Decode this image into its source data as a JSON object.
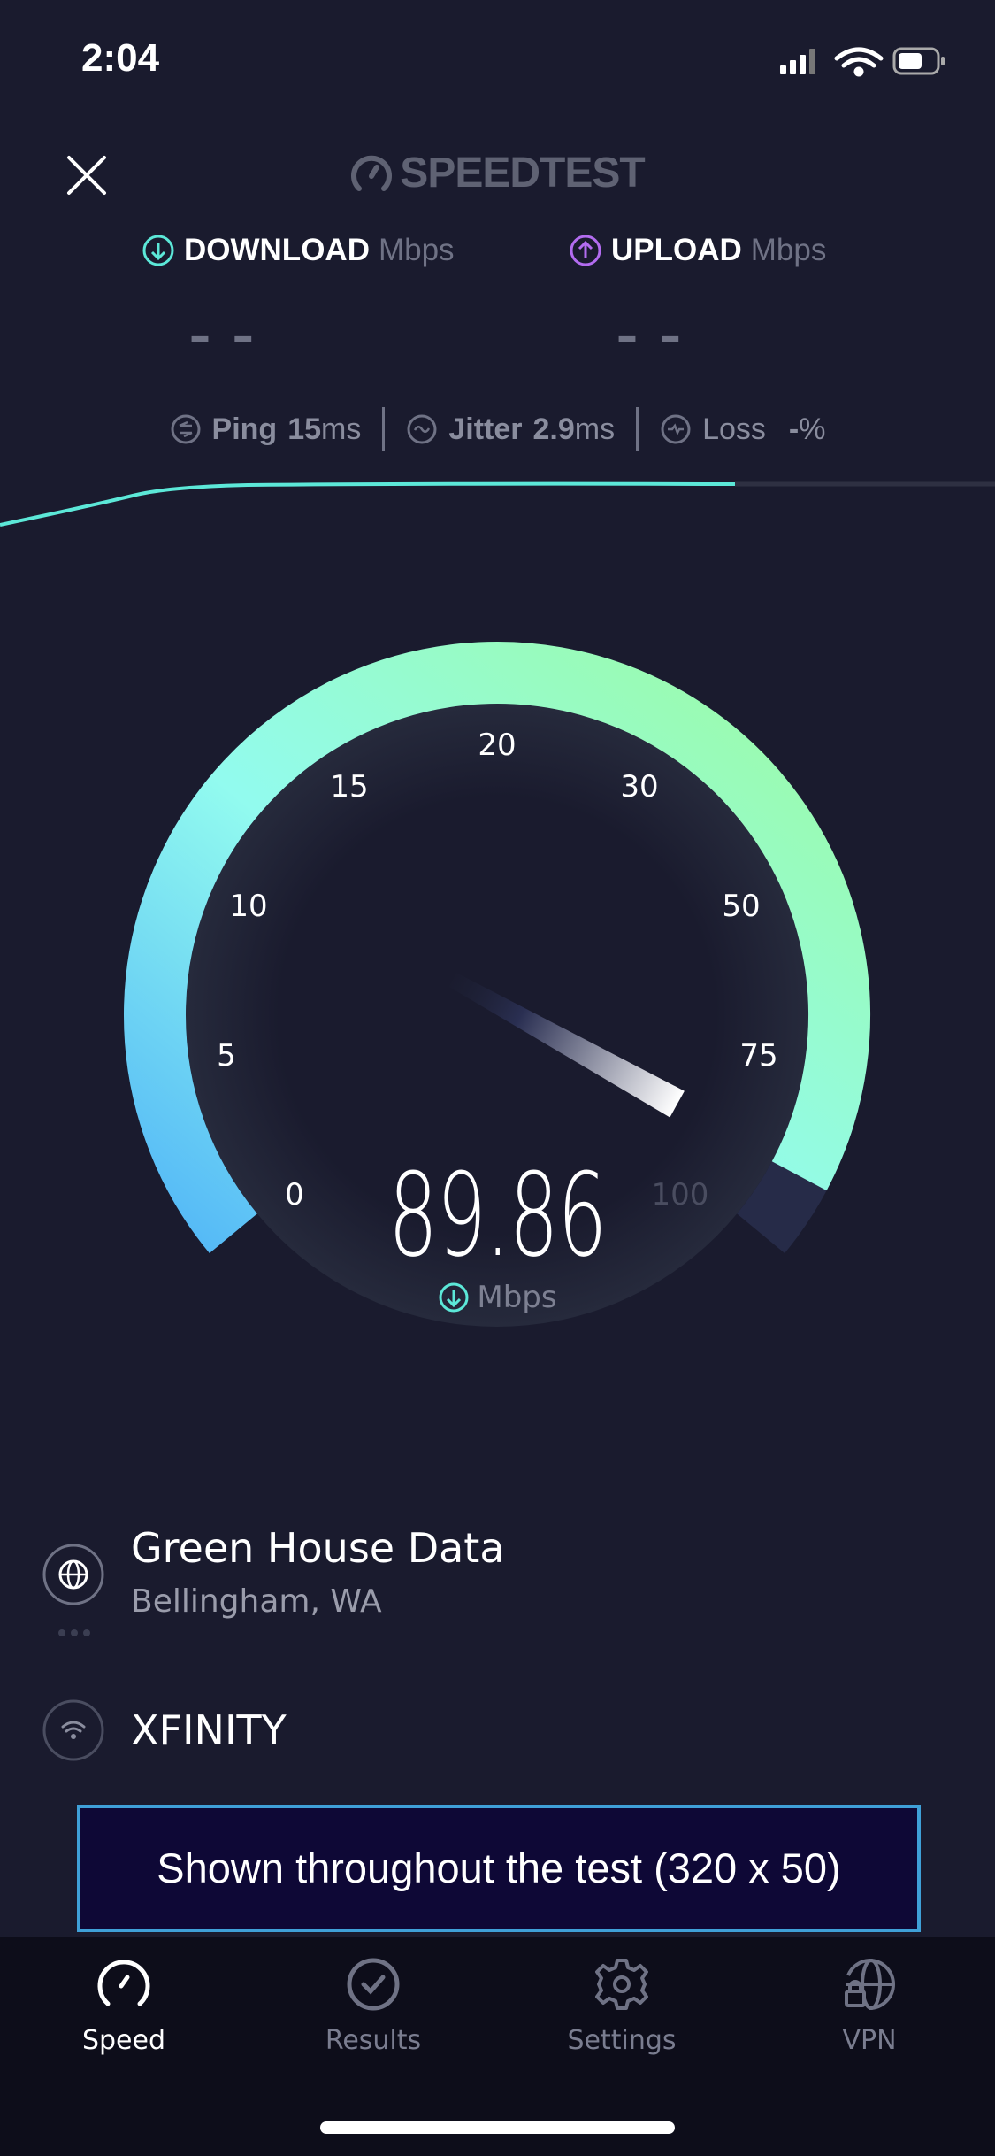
{
  "status_bar": {
    "time": "2:04",
    "icons": [
      "cellular-signal-icon",
      "wifi-icon",
      "battery-icon"
    ]
  },
  "header": {
    "close_icon": "close-icon",
    "logo_text": "SPEEDTEST"
  },
  "metrics": {
    "download": {
      "label": "DOWNLOAD",
      "unit": "Mbps",
      "value": "– –",
      "icon": "download-arrow-icon",
      "color": "#5ce8d8"
    },
    "upload": {
      "label": "UPLOAD",
      "unit": "Mbps",
      "value": "– –",
      "icon": "upload-arrow-icon",
      "color": "#b36cf0"
    }
  },
  "stats": {
    "ping": {
      "label": "Ping",
      "value": "15",
      "unit": "ms"
    },
    "jitter": {
      "label": "Jitter",
      "value": "2.9",
      "unit": "ms"
    },
    "loss": {
      "label": "Loss",
      "value": "-",
      "unit": "%"
    }
  },
  "progress": {
    "fraction": 0.74,
    "color": "#5ce8d8"
  },
  "gauge": {
    "ticks": [
      "0",
      "5",
      "10",
      "15",
      "20",
      "30",
      "50",
      "75",
      "100"
    ],
    "current_value": "89.86",
    "unit": "Mbps",
    "max": "100",
    "colors": {
      "start": "#52b6f7",
      "mid": "#92fbef",
      "end": "#9cfba2"
    }
  },
  "server": {
    "name": "Green House Data",
    "location": "Bellingham, WA",
    "icon": "globe-icon"
  },
  "isp": {
    "name": "XFINITY",
    "icon": "wifi-icon"
  },
  "ad": {
    "text": "Shown throughout the test (320 x 50)"
  },
  "tabs": [
    {
      "label": "Speed",
      "icon": "speedometer-icon",
      "active": true
    },
    {
      "label": "Results",
      "icon": "check-circle-icon",
      "active": false
    },
    {
      "label": "Settings",
      "icon": "gear-icon",
      "active": false
    },
    {
      "label": "VPN",
      "icon": "vpn-globe-lock-icon",
      "active": false
    }
  ]
}
